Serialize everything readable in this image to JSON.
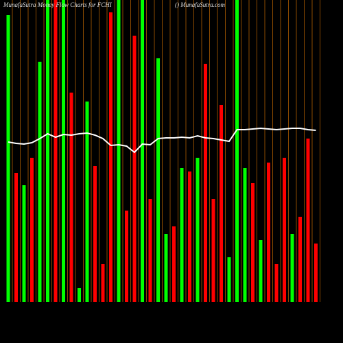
{
  "chart_data": {
    "type": "bar",
    "title": "MunafaSutra Money Flow Charts for FCHI",
    "subtitle": "() MunafaSutra.com",
    "categories": [
      null,
      null,
      null,
      null,
      null,
      null,
      null,
      null,
      null,
      null,
      null,
      null,
      null,
      null,
      null,
      null,
      null,
      null,
      null,
      null,
      null,
      null,
      null,
      null,
      null,
      null,
      null,
      null,
      null,
      null,
      null,
      null,
      null,
      null,
      null,
      null,
      null,
      null,
      null,
      null
    ],
    "ylim": [
      0,
      440
    ],
    "guide_color": "#8b4a00",
    "series": [
      {
        "type": "bar",
        "values": [
          418,
          188,
          170,
          210,
          350,
          440,
          440,
          440,
          305,
          20,
          292,
          198,
          55,
          422,
          440,
          133,
          388,
          440,
          150,
          355,
          99,
          110,
          195,
          190,
          210,
          347,
          150,
          287,
          65,
          440,
          195,
          173,
          90,
          203,
          55,
          210,
          99,
          124,
          238,
          85
        ],
        "colors": [
          "#00ff00",
          "#ff0000",
          "#00ff00",
          "#ff0000",
          "#00ff00",
          "#00ff00",
          "#ff0000",
          "#00ff00",
          "#ff0000",
          "#00ff00",
          "#00ff00",
          "#ff0000",
          "#ff0000",
          "#ff0000",
          "#00ff00",
          "#ff0000",
          "#ff0000",
          "#00ff00",
          "#ff0000",
          "#00ff00",
          "#00ff00",
          "#ff0000",
          "#00ff00",
          "#ff0000",
          "#00ff00",
          "#ff0000",
          "#ff0000",
          "#ff0000",
          "#00ff00",
          "#00ff00",
          "#00ff00",
          "#ff0000",
          "#00ff00",
          "#ff0000",
          "#ff0000",
          "#ff0000",
          "#00ff00",
          "#ff0000",
          "#ff0000",
          "#ff0000"
        ]
      },
      {
        "type": "line",
        "color": "#ffffff",
        "values": [
          233,
          231,
          230,
          232,
          238,
          245,
          240,
          244,
          243,
          245,
          246,
          243,
          238,
          228,
          229,
          227,
          218,
          230,
          229,
          238,
          239,
          239,
          240,
          239,
          242,
          239,
          238,
          236,
          234,
          251,
          251,
          252,
          253,
          252,
          251,
          252,
          253,
          253,
          251,
          250
        ]
      }
    ]
  }
}
